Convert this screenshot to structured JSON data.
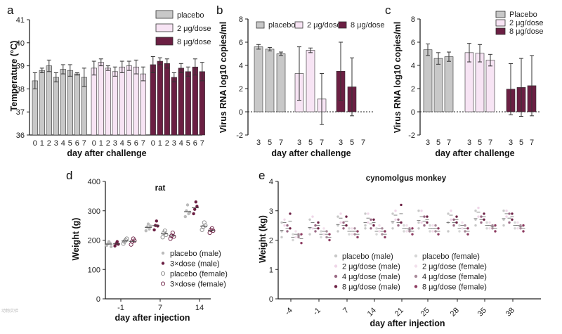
{
  "colors": {
    "placebo": "#c8c8c8",
    "dose2": "#f7e4f4",
    "dose8": "#6b1f43",
    "dose4": "#9a6a85",
    "border": "#333333"
  },
  "watermark": "动物实验",
  "panels": {
    "a": {
      "label": "a",
      "ylabel": "Temperature (°C)",
      "xlabel": "day after challenge"
    },
    "b": {
      "label": "b",
      "ylabel": "Virus RNA  log10 copies/ml",
      "xlabel": "day after challenge"
    },
    "c": {
      "label": "c",
      "ylabel": "Virus RNA log10 copies/ml",
      "xlabel": "day after challenge"
    },
    "d": {
      "label": "d",
      "ylabel": "Weight (g)",
      "xlabel": "day after injection",
      "title": "rat"
    },
    "e": {
      "label": "e",
      "ylabel": "Weight (kg)",
      "xlabel": "day after injection",
      "title": "cynomolgus monkey"
    }
  },
  "chart_data": [
    {
      "id": "a",
      "type": "bar",
      "ylim": [
        36,
        41
      ],
      "yticks": [
        36,
        37,
        38,
        39,
        40,
        41
      ],
      "categories": [
        "0",
        "1",
        "2",
        "3",
        "4",
        "5",
        "6",
        "7"
      ],
      "legend": [
        "placebo",
        "2 μg/dose",
        "8 μg/dose"
      ],
      "series": [
        {
          "name": "placebo",
          "values": [
            38.35,
            38.8,
            39.0,
            38.5,
            38.85,
            38.8,
            38.65,
            38.5
          ],
          "err": [
            0.35,
            0.1,
            0.25,
            0.2,
            0.2,
            0.25,
            0.05,
            0.4
          ]
        },
        {
          "name": "2 μg/dose",
          "values": [
            38.9,
            39.15,
            38.9,
            38.75,
            38.95,
            39.0,
            38.95,
            38.65
          ],
          "err": [
            0.3,
            0.15,
            0.1,
            0.2,
            0.25,
            0.2,
            0.3,
            0.3
          ]
        },
        {
          "name": "8 μg/dose",
          "values": [
            39.05,
            39.2,
            39.1,
            38.5,
            38.9,
            38.75,
            38.95,
            38.75
          ],
          "err": [
            0.35,
            0.15,
            0.2,
            0.2,
            0.2,
            0.2,
            0.35,
            0.4
          ]
        }
      ]
    },
    {
      "id": "b",
      "type": "bar",
      "ylim": [
        -2,
        8
      ],
      "yticks": [
        -2,
        0,
        2,
        4,
        6,
        8
      ],
      "categories": [
        "3",
        "5",
        "7"
      ],
      "legend": [
        "placebo",
        "2 μg/dose",
        "8 μg/dose"
      ],
      "series": [
        {
          "name": "placebo",
          "values": [
            5.6,
            5.4,
            5.0
          ],
          "err": [
            0.2,
            0.15,
            0.15
          ]
        },
        {
          "name": "2 μg/dose",
          "values": [
            3.3,
            5.3,
            1.1
          ],
          "err": [
            2.3,
            0.2,
            2.2
          ]
        },
        {
          "name": "8 μg/dose",
          "values": [
            3.5,
            2.15,
            0.0
          ],
          "err": [
            2.5,
            2.5,
            0
          ]
        }
      ]
    },
    {
      "id": "c",
      "type": "bar",
      "ylim": [
        -2,
        8
      ],
      "yticks": [
        -2,
        0,
        2,
        4,
        6,
        8
      ],
      "categories": [
        "3",
        "5",
        "7"
      ],
      "legend": [
        "Placebo",
        "2 μg/dose",
        "8 μg/dose"
      ],
      "series": [
        {
          "name": "Placebo",
          "values": [
            5.35,
            4.6,
            4.75
          ],
          "err": [
            0.5,
            0.5,
            0.4
          ]
        },
        {
          "name": "2 μg/dose",
          "values": [
            5.1,
            5.05,
            4.45
          ],
          "err": [
            0.8,
            0.75,
            0.5
          ]
        },
        {
          "name": "8 μg/dose",
          "values": [
            1.95,
            2.1,
            2.25
          ],
          "err": [
            2.2,
            2.5,
            2.6
          ]
        }
      ]
    },
    {
      "id": "d",
      "type": "scatter",
      "ylim": [
        0,
        400
      ],
      "yticks": [
        0,
        100,
        200,
        300,
        400
      ],
      "categories": [
        "-1",
        "7",
        "14"
      ],
      "legend": [
        "placebo (male)",
        "3×dose (male)",
        "placebo (female)",
        "3×dose (female)"
      ],
      "series": [
        {
          "name": "placebo (male)",
          "values": [
            [
              182,
              188,
              195,
              190,
              178
            ],
            [
              232,
              245,
              255,
              238,
              248
            ],
            [
              280,
              300,
              320,
              290,
              295
            ]
          ]
        },
        {
          "name": "3×dose (male)",
          "values": [
            [
              180,
              188,
              195,
              186
            ],
            [
              235,
              250,
              265,
              248
            ],
            [
              290,
              305,
              330,
              315
            ]
          ]
        },
        {
          "name": "placebo (female)",
          "values": [
            [
              188,
              195,
              200,
              205
            ],
            [
              210,
              225,
              232,
              218
            ],
            [
              235,
              245,
              260,
              250
            ]
          ]
        },
        {
          "name": "3×dose (female)",
          "values": [
            [
              185,
              195,
              205,
              198
            ],
            [
              205,
              215,
              225,
              212
            ],
            [
              225,
              235,
              240,
              232
            ]
          ]
        }
      ]
    },
    {
      "id": "e",
      "type": "scatter",
      "ylim": [
        0,
        4
      ],
      "yticks": [
        0,
        1,
        2,
        3,
        4
      ],
      "categories": [
        "-4",
        "-1",
        "7",
        "14",
        "21",
        "25",
        "28",
        "35",
        "38"
      ],
      "legend": [
        "placebo (male)",
        "2 μg/dose (male)",
        "4 μg/dose (male)",
        "8 μg/dose (male)",
        "placebo (female)",
        "2 μg/dose (female)",
        "4 μg/dose (female)",
        "8 μg/dose (female)"
      ],
      "series": [
        {
          "name": "placebo (male)",
          "values": [
            [
              2.3,
              2.6,
              2.1
            ],
            [
              2.4,
              2.7,
              2.2
            ],
            [
              2.5,
              2.8,
              2.3
            ],
            [
              2.5,
              2.9,
              2.4
            ],
            [
              2.6,
              2.9,
              2.4
            ],
            [
              2.6,
              3.0,
              2.4
            ],
            [
              2.6,
              2.9,
              2.3
            ],
            [
              2.7,
              3.0,
              2.5
            ],
            [
              2.7,
              3.0,
              2.5
            ]
          ]
        },
        {
          "name": "2 μg/dose (male)",
          "values": [
            [
              2.5,
              2.7
            ],
            [
              2.4,
              2.8
            ],
            [
              2.6,
              2.9
            ],
            [
              2.6,
              2.9
            ],
            [
              2.7,
              3.0
            ],
            [
              2.6,
              3.0
            ],
            [
              2.7,
              3.0
            ],
            [
              2.8,
              3.1
            ],
            [
              2.8,
              3.0
            ]
          ]
        },
        {
          "name": "4 μg/dose (male)",
          "values": [
            [
              2.3,
              2.5
            ],
            [
              2.3,
              2.5
            ],
            [
              2.4,
              2.6
            ],
            [
              2.4,
              2.7
            ],
            [
              2.5,
              2.7
            ],
            [
              2.5,
              2.8
            ],
            [
              2.5,
              2.7
            ],
            [
              2.6,
              2.8
            ],
            [
              2.6,
              2.9
            ]
          ]
        },
        {
          "name": "8 μg/dose (male)",
          "values": [
            [
              2.4,
              2.9
            ],
            [
              2.4,
              2.6
            ],
            [
              2.5,
              2.8
            ],
            [
              2.5,
              2.7
            ],
            [
              2.6,
              3.2
            ],
            [
              2.6,
              2.8
            ],
            [
              2.6,
              2.8
            ],
            [
              2.7,
              2.9
            ],
            [
              2.7,
              2.9
            ]
          ]
        },
        {
          "name": "placebo (female)",
          "values": [
            [
              2.0,
              2.2
            ],
            [
              2.1,
              2.3
            ],
            [
              2.2,
              2.4
            ],
            [
              2.2,
              2.4
            ],
            [
              2.3,
              2.5
            ],
            [
              2.3,
              2.5
            ],
            [
              2.3,
              2.5
            ],
            [
              2.4,
              2.6
            ],
            [
              2.4,
              2.6
            ]
          ]
        },
        {
          "name": "2 μg/dose (female)",
          "values": [
            [
              2.1,
              2.3
            ],
            [
              2.2,
              2.4
            ],
            [
              2.2,
              2.4
            ],
            [
              2.3,
              2.5
            ],
            [
              2.3,
              2.5
            ],
            [
              2.3,
              2.5
            ],
            [
              2.4,
              2.6
            ],
            [
              2.4,
              2.6
            ],
            [
              2.4,
              2.6
            ]
          ]
        },
        {
          "name": "4 μg/dose (female)",
          "values": [
            [
              2.1,
              2.2
            ],
            [
              2.1,
              2.3
            ],
            [
              2.2,
              2.4
            ],
            [
              2.2,
              2.4
            ],
            [
              2.3,
              2.4
            ],
            [
              2.3,
              2.5
            ],
            [
              2.3,
              2.5
            ],
            [
              2.4,
              2.5
            ],
            [
              2.4,
              2.5
            ]
          ]
        },
        {
          "name": "8 μg/dose (female)",
          "values": [
            [
              1.9,
              2.2
            ],
            [
              2.0,
              2.2
            ],
            [
              2.1,
              2.3
            ],
            [
              2.1,
              2.3
            ],
            [
              2.2,
              2.4
            ],
            [
              2.2,
              2.4
            ],
            [
              2.2,
              2.4
            ],
            [
              2.3,
              2.5
            ],
            [
              2.3,
              2.5
            ]
          ]
        }
      ]
    }
  ]
}
